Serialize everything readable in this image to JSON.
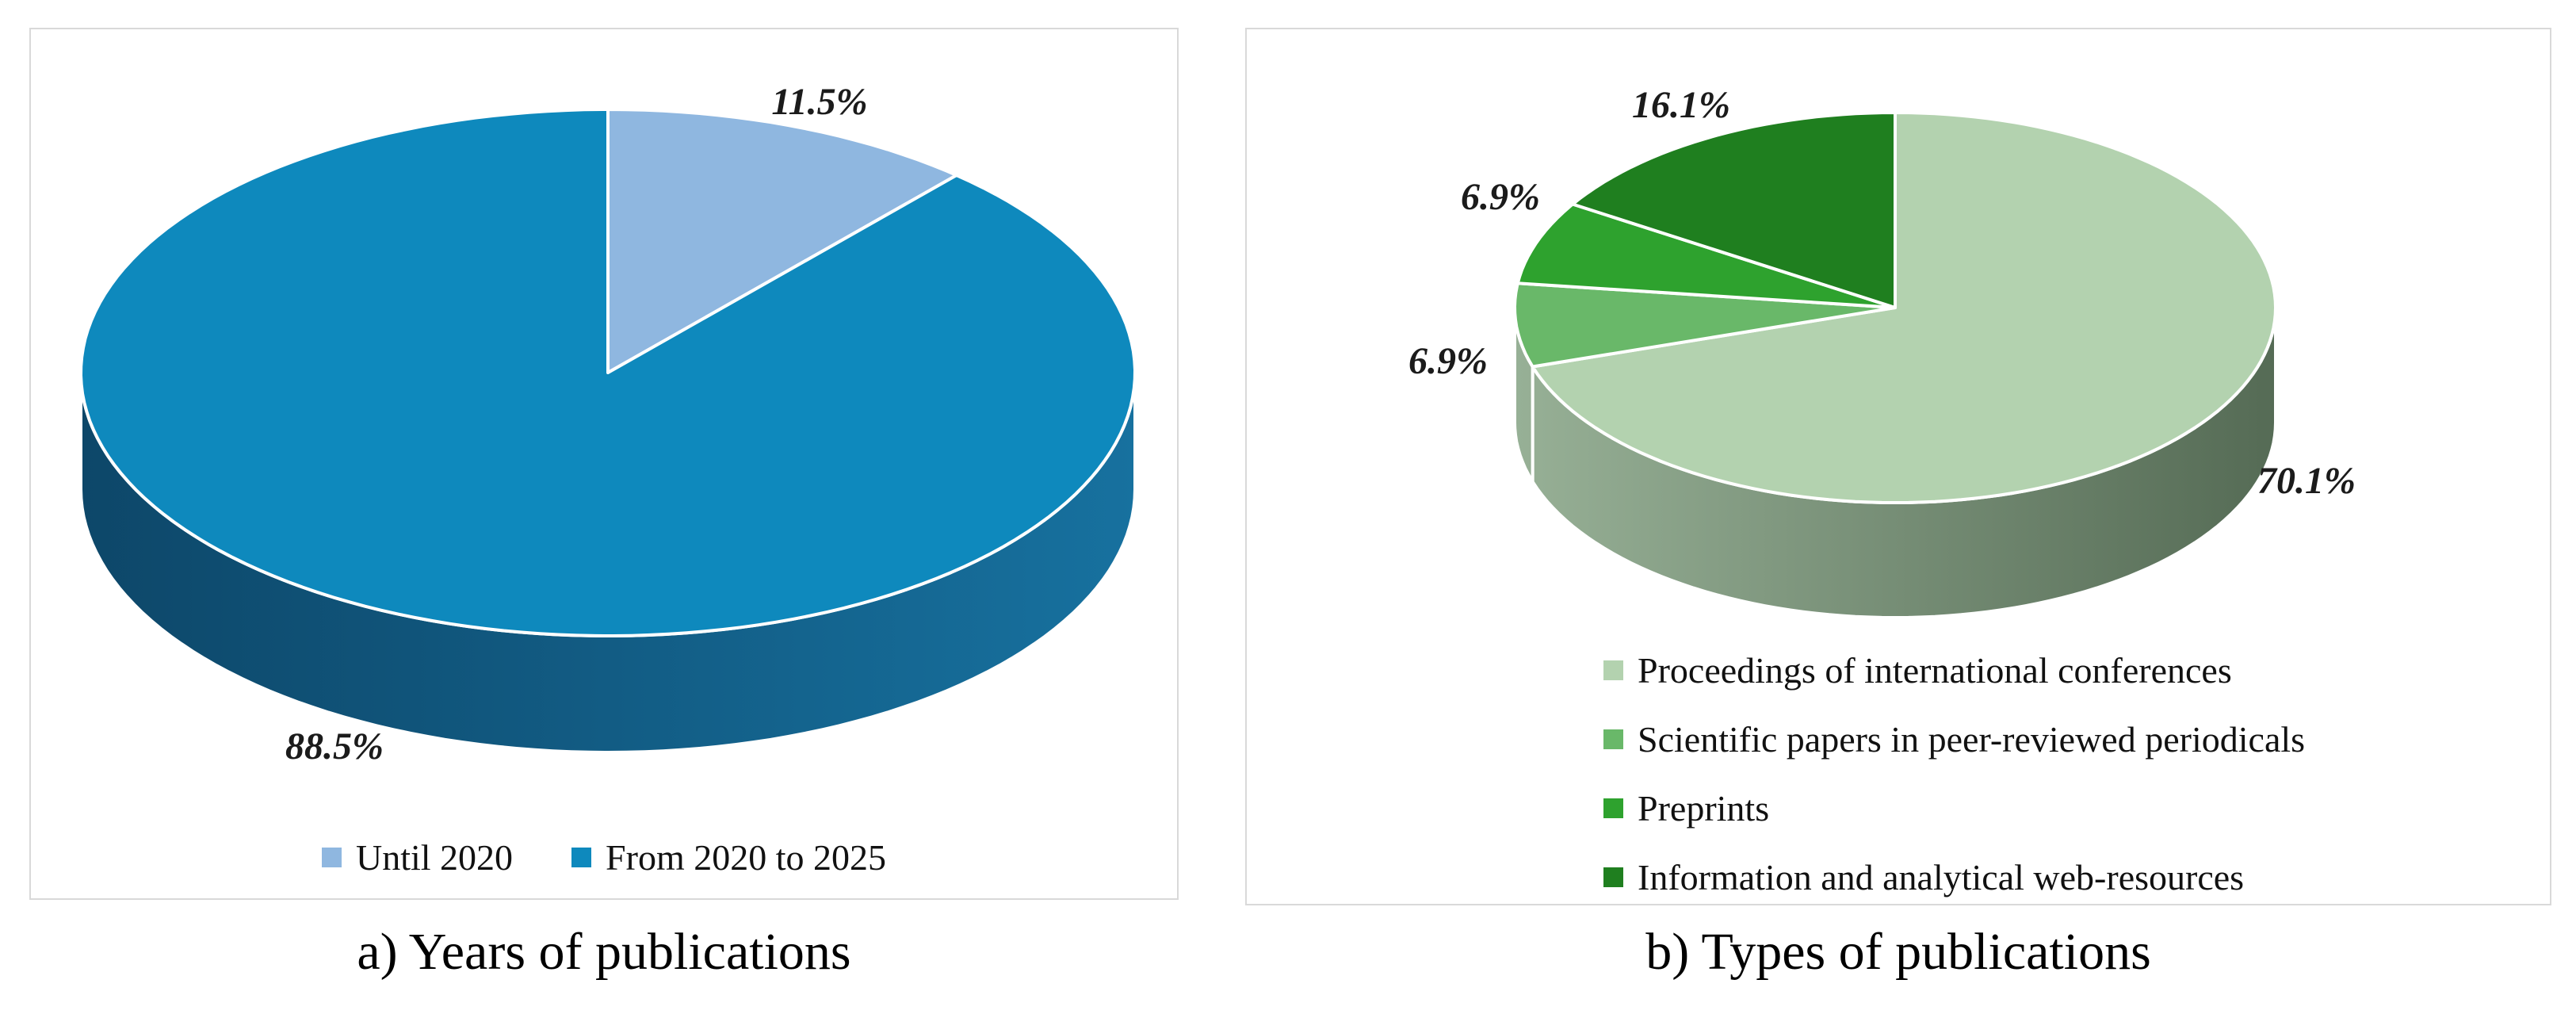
{
  "figure": {
    "background": "#FFFFFF",
    "panel_border_color": "#D9D9D9",
    "label_color": "#1B1B1B",
    "panels": [
      {
        "caption": "a) Years of publications"
      },
      {
        "caption": "b) Types of publications"
      }
    ]
  },
  "chart_data": [
    {
      "type": "pie",
      "style_3d": true,
      "title": "a) Years of publications",
      "start_angle_deg": 0,
      "direction": "clockwise",
      "unit": "percent",
      "labels": [
        "Until 2020",
        "From 2020 to 2025"
      ],
      "values": [
        11.5,
        88.5
      ],
      "data_labels": [
        "11.5%",
        "88.5%"
      ],
      "colors": [
        "#8FB7E0",
        "#0E89BD"
      ],
      "side_shading": {
        "from": "#0D4769",
        "to": "#17719F"
      },
      "legend_position": "bottom-center-horizontal"
    },
    {
      "type": "pie",
      "style_3d": true,
      "title": "b) Types of publications",
      "start_angle_deg": 0,
      "direction": "clockwise",
      "unit": "percent",
      "labels": [
        "Proceedings of international conferences",
        "Scientific papers in peer-reviewed periodicals",
        "Preprints",
        "Information and analytical web-resources"
      ],
      "values": [
        70.1,
        6.9,
        6.9,
        16.1
      ],
      "data_labels": [
        "70.1%",
        "6.9%",
        "6.9%",
        "16.1%"
      ],
      "colors": [
        "#B3D2AF",
        "#69B869",
        "#2EA22E",
        "#1F7F1F"
      ],
      "side_shading": {
        "from": "#97B096",
        "to": "#556B55"
      },
      "legend_position": "bottom-left-vertical"
    }
  ]
}
